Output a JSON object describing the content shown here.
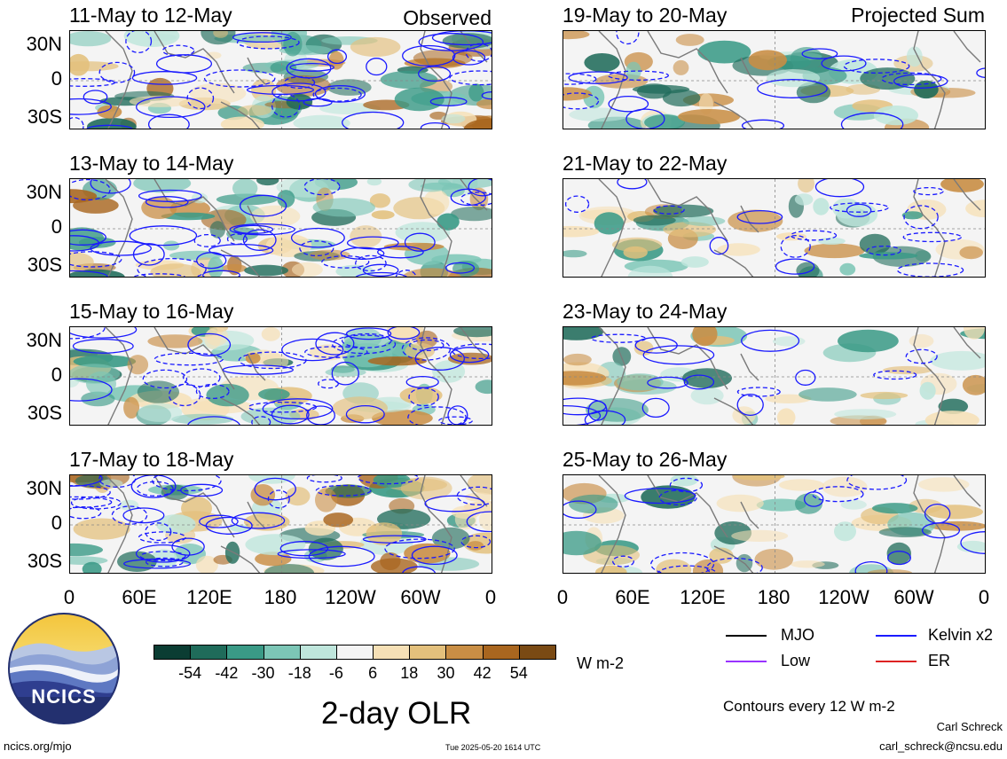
{
  "chart_data": {
    "type": "heatmap",
    "title": "2-day OLR",
    "units": "W m-2",
    "colorbar": {
      "ticks": [
        "-54",
        "-42",
        "-30",
        "-18",
        "-6",
        "6",
        "18",
        "30",
        "42",
        "54"
      ],
      "colors": [
        "#0b3d33",
        "#1f6b5a",
        "#3a9a86",
        "#7cc6b6",
        "#bfe6dc",
        "#f4f4f4",
        "#f6e0b6",
        "#e3c07c",
        "#c98e45",
        "#a9661f",
        "#7a4a14"
      ]
    },
    "lat_labels": [
      "30N",
      "0",
      "30S"
    ],
    "lon_labels": [
      "0",
      "60E",
      "120E",
      "180",
      "120W",
      "60W",
      "0"
    ],
    "left_column_tag": "Observed",
    "right_column_tag": "Projected Sum",
    "observed_panels": [
      {
        "title": "11-May to 12-May"
      },
      {
        "title": "13-May to 14-May"
      },
      {
        "title": "15-May to 16-May"
      },
      {
        "title": "17-May to 18-May"
      }
    ],
    "projected_panels": [
      {
        "title": "19-May to 20-May"
      },
      {
        "title": "21-May to 22-May"
      },
      {
        "title": "23-May to 24-May"
      },
      {
        "title": "25-May to 26-May"
      }
    ],
    "legend": [
      {
        "name": "MJO",
        "color": "#000000"
      },
      {
        "name": "Kelvin x2",
        "color": "#1a1aff"
      },
      {
        "name": "Low",
        "color": "#9933ff"
      },
      {
        "name": "ER",
        "color": "#dd2222"
      }
    ],
    "contour_note": "Contours every 12 W m-2"
  },
  "footer": {
    "site": "ncics.org/mjo",
    "timestamp": "Tue 2025-05-20 1614 UTC",
    "author": "Carl Schreck",
    "email": "carl_schreck@ncsu.edu"
  },
  "logo": {
    "text": "NCICS"
  }
}
